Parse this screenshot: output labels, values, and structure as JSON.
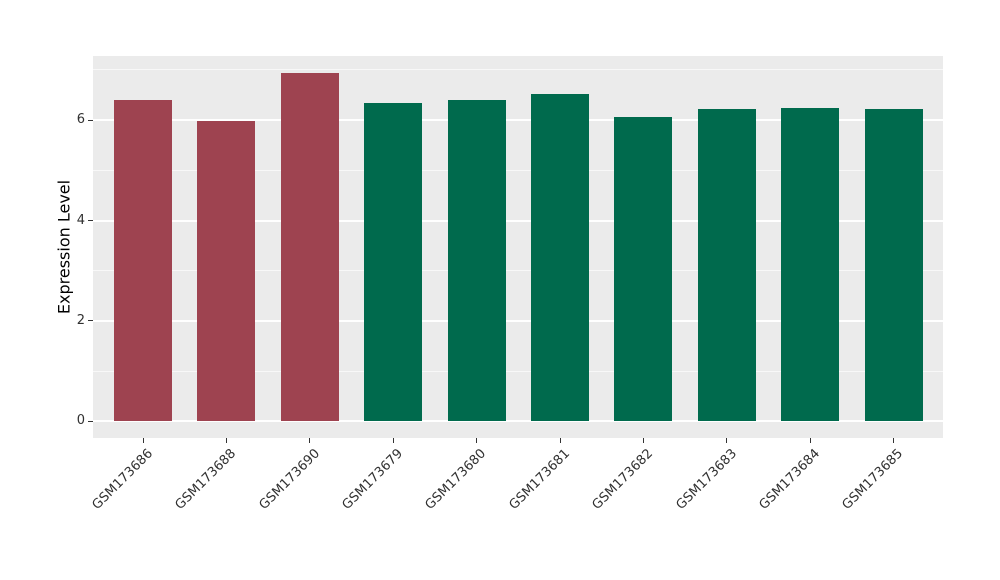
{
  "chart_data": {
    "type": "bar",
    "title": "",
    "xlabel": "",
    "ylabel": "Expression Level",
    "categories": [
      "GSM173686",
      "GSM173688",
      "GSM173690",
      "GSM173679",
      "GSM173680",
      "GSM173681",
      "GSM173682",
      "GSM173683",
      "GSM173684",
      "GSM173685"
    ],
    "values": [
      6.41,
      5.99,
      6.94,
      6.34,
      6.4,
      6.51,
      6.07,
      6.22,
      6.25,
      6.23
    ],
    "bar_colors": [
      "#9E4350",
      "#9E4350",
      "#9E4350",
      "#006A4D",
      "#006A4D",
      "#006A4D",
      "#006A4D",
      "#006A4D",
      "#006A4D",
      "#006A4D"
    ],
    "yticks": [
      0,
      2,
      4,
      6
    ],
    "minor_gridlines": [
      1,
      3,
      5,
      7
    ],
    "ylim": [
      -0.35,
      7.3
    ],
    "grid": "major-and-minor-horizontal",
    "legend_position": "none",
    "colors": {
      "panel_background": "#EBEBEB",
      "gridline": "#FFFFFF",
      "bar_group_left": "#9E4350",
      "bar_group_right": "#006A4D",
      "tick_mark": "#333333",
      "tick_label": "#303030",
      "axis_title": "#000000",
      "figure_background": "#FFFFFF"
    }
  }
}
